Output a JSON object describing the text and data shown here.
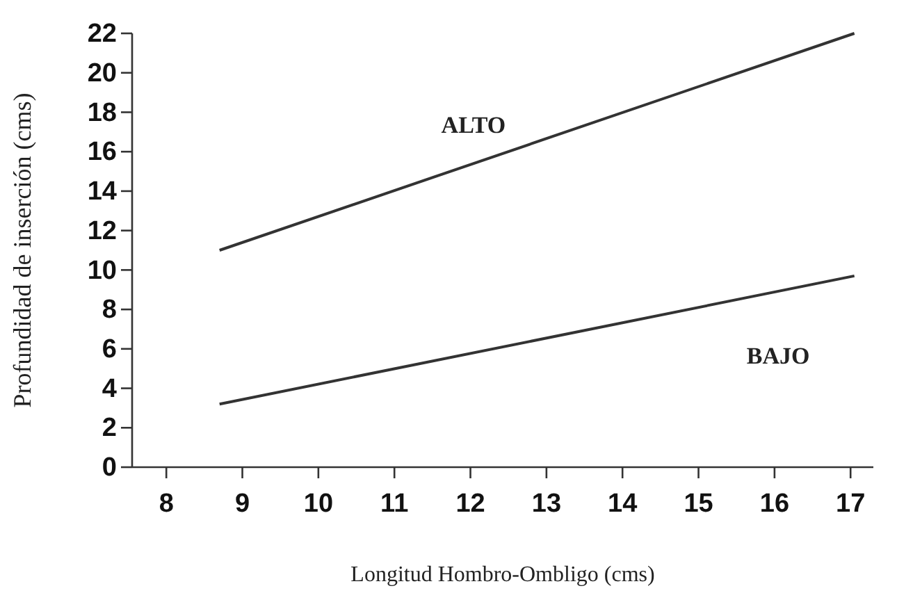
{
  "chart_data": {
    "type": "line",
    "xlabel": "Longitud Hombro-Ombligo (cms)",
    "ylabel": "Profundidad de inserción (cms)",
    "xlim": [
      7.55,
      17.3
    ],
    "xticks": [
      8,
      9,
      10,
      11,
      12,
      13,
      14,
      15,
      16,
      17
    ],
    "ylim": [
      0,
      22
    ],
    "yticks": [
      0,
      2,
      4,
      6,
      8,
      10,
      12,
      14,
      16,
      18,
      20,
      22
    ],
    "x": [
      8.7,
      17.05
    ],
    "series": [
      {
        "name": "ALTO",
        "color": "#333333",
        "values": [
          11.0,
          22.0
        ]
      },
      {
        "name": "BAJO",
        "color": "#333333",
        "values": [
          3.2,
          9.7
        ]
      }
    ],
    "grid": false,
    "marker": "none",
    "line_style": "solid"
  }
}
